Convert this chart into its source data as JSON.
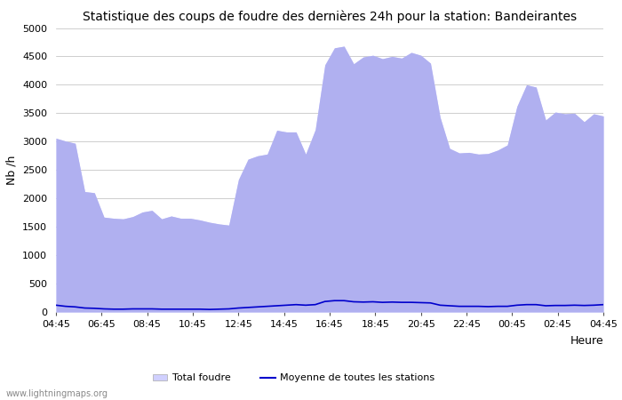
{
  "title": "Statistique des coups de foudre des dernières 24h pour la station: Bandeirantes",
  "xlabel": "Heure",
  "ylabel": "Nb /h",
  "watermark": "www.lightningmaps.org",
  "ylim": [
    0,
    5000
  ],
  "yticks": [
    0,
    500,
    1000,
    1500,
    2000,
    2500,
    3000,
    3500,
    4000,
    4500,
    5000
  ],
  "x_labels": [
    "04:45",
    "06:45",
    "08:45",
    "10:45",
    "12:45",
    "14:45",
    "16:45",
    "18:45",
    "20:45",
    "22:45",
    "00:45",
    "02:45",
    "04:45"
  ],
  "total_foudre_color": "#d0d0ff",
  "bandeirantes_color": "#b0b0f0",
  "moyenne_color": "#0000cc",
  "background_color": "#ffffff",
  "grid_color": "#bbbbbb",
  "title_fontsize": 10,
  "total_foudre": [
    3060,
    3010,
    2970,
    2120,
    2100,
    1670,
    1650,
    1640,
    1680,
    1760,
    1790,
    1640,
    1690,
    1650,
    1650,
    1620,
    1580,
    1550,
    1530,
    2330,
    2690,
    2750,
    2780,
    3200,
    3170,
    3170,
    2780,
    3210,
    4350,
    4650,
    4680,
    4370,
    4490,
    4520,
    4460,
    4500,
    4470,
    4570,
    4520,
    4380,
    3430,
    2880,
    2800,
    2810,
    2780,
    2790,
    2850,
    2940,
    3620,
    4000,
    3960,
    3380,
    3520,
    3490,
    3500,
    3350,
    3490,
    3450
  ],
  "bandeirantes": [
    3060,
    3010,
    2970,
    2120,
    2100,
    1670,
    1650,
    1640,
    1680,
    1760,
    1790,
    1640,
    1690,
    1650,
    1650,
    1620,
    1580,
    1550,
    1530,
    2330,
    2690,
    2750,
    2780,
    3200,
    3170,
    3170,
    2780,
    3210,
    4350,
    4650,
    4680,
    4370,
    4490,
    4520,
    4460,
    4500,
    4470,
    4570,
    4520,
    4380,
    3430,
    2880,
    2800,
    2810,
    2780,
    2790,
    2850,
    2940,
    3620,
    4000,
    3960,
    3380,
    3520,
    3490,
    3500,
    3350,
    3490,
    3450
  ],
  "moyenne": [
    120,
    100,
    90,
    70,
    65,
    55,
    50,
    50,
    55,
    55,
    55,
    50,
    50,
    50,
    50,
    50,
    45,
    50,
    55,
    70,
    80,
    90,
    100,
    110,
    120,
    130,
    120,
    130,
    185,
    200,
    200,
    180,
    175,
    180,
    170,
    175,
    170,
    170,
    165,
    160,
    120,
    110,
    100,
    100,
    100,
    95,
    100,
    100,
    120,
    130,
    130,
    110,
    115,
    115,
    120,
    115,
    120,
    130
  ],
  "n_points": 58,
  "legend_total_label": "Total foudre",
  "legend_moyenne_label": "Moyenne de toutes les stations"
}
